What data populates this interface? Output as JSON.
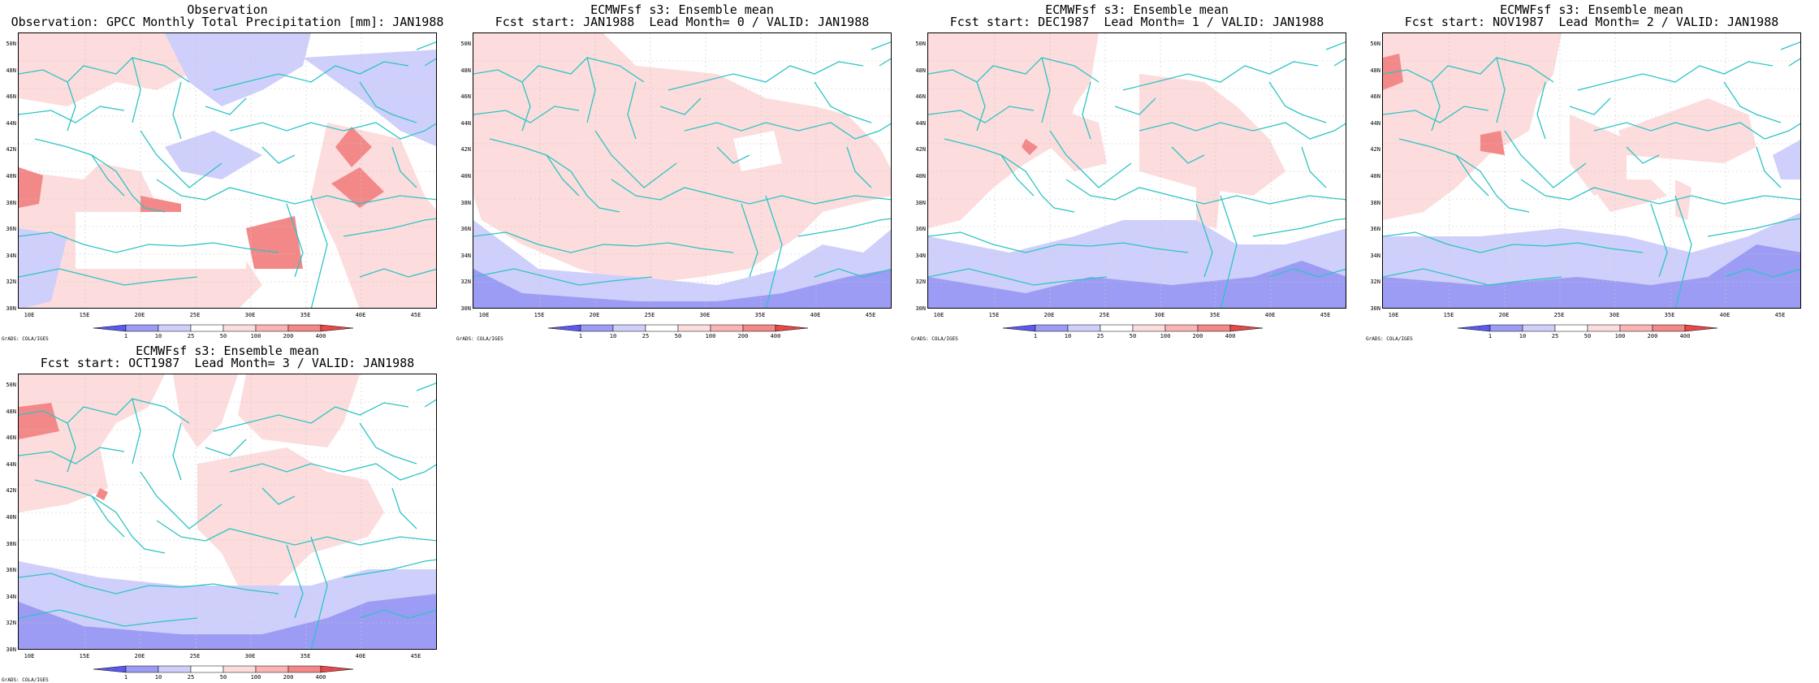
{
  "panels": [
    {
      "title_line1": "Observation",
      "title_line2": "Observation: GPCC Monthly Total Precipitation [mm]: JAN1988",
      "col": 0,
      "row": 0,
      "variant": "obs"
    },
    {
      "title_line1": "ECMWFsf s3: Ensemble mean",
      "title_line2": "Fcst start: JAN1988  Lead Month= 0 / VALID: JAN1988",
      "col": 1,
      "row": 0,
      "variant": "lead0"
    },
    {
      "title_line1": "ECMWFsf s3: Ensemble mean",
      "title_line2": "Fcst start: DEC1987  Lead Month= 1 / VALID: JAN1988",
      "col": 2,
      "row": 0,
      "variant": "lead1"
    },
    {
      "title_line1": "ECMWFsf s3: Ensemble mean",
      "title_line2": "Fcst start: NOV1987  Lead Month= 2 / VALID: JAN1988",
      "col": 3,
      "row": 0,
      "variant": "lead2"
    },
    {
      "title_line1": "ECMWFsf s3: Ensemble mean",
      "title_line2": "Fcst start: OCT1987  Lead Month= 3 / VALID: JAN1988",
      "col": 0,
      "row": 1,
      "variant": "lead3"
    }
  ],
  "lat_labels": [
    "50N",
    "48N",
    "46N",
    "44N",
    "42N",
    "40N",
    "38N",
    "36N",
    "34N",
    "32N",
    "30N"
  ],
  "lon_labels": [
    "10E",
    "15E",
    "20E",
    "25E",
    "30E",
    "35E",
    "40E",
    "45E"
  ],
  "colorbar": {
    "labels": [
      "1",
      "10",
      "25",
      "50",
      "100",
      "200",
      "400"
    ],
    "colors": [
      "#5a5af0",
      "#9c9cf5",
      "#cfcffb",
      "#ffffff",
      "#fcdcdc",
      "#f9b4b4",
      "#f38888",
      "#e84848"
    ]
  },
  "credit": "GrADS: COLA/IGES",
  "coast_color": "#2ec4c4"
}
